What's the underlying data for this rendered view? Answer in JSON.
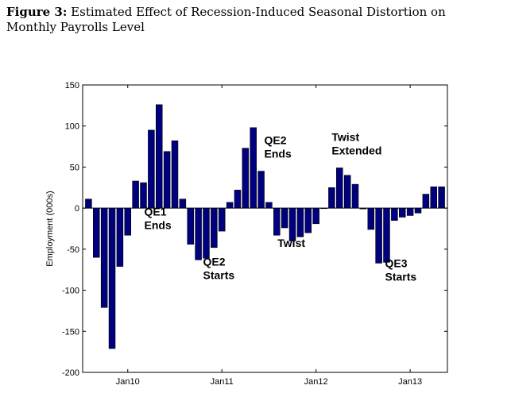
{
  "figure": {
    "number": "Figure 3:",
    "title": "Estimated Effect of Recession-Induced Seasonal Distortion on Monthly Payrolls Level"
  },
  "chart_data": {
    "type": "bar",
    "ylabel": "Employment (000s)",
    "xlabel": "",
    "ylim": [
      -200,
      150
    ],
    "yticks": [
      150,
      100,
      50,
      0,
      -50,
      -100,
      -150,
      -200
    ],
    "xtick_labels": [
      {
        "label": "Jan10",
        "index": 5
      },
      {
        "label": "Jan11",
        "index": 17
      },
      {
        "label": "Jan12",
        "index": 29
      },
      {
        "label": "Jan13",
        "index": 41
      }
    ],
    "bar_color": "#00007f",
    "values": [
      11,
      -60,
      -121,
      -171,
      -71,
      -33,
      33,
      31,
      95,
      126,
      69,
      82,
      11,
      -44,
      -63,
      -61,
      -48,
      -28,
      7,
      22,
      73,
      98,
      45,
      7,
      -33,
      -24,
      -40,
      -35,
      -30,
      -19,
      0,
      25,
      49,
      40,
      29,
      -1,
      -26,
      -67,
      -66,
      -15,
      -11,
      -9,
      -6,
      17,
      26,
      26
    ],
    "annotations": [
      {
        "lines": [
          "QE1",
          "Ends"
        ],
        "x_index": 7.1,
        "y_value": -9
      },
      {
        "lines": [
          "QE2",
          "Starts"
        ],
        "x_index": 14.6,
        "y_value": -70
      },
      {
        "lines": [
          "QE2",
          "Ends"
        ],
        "x_index": 22.4,
        "y_value": 78
      },
      {
        "lines": [
          "Twist"
        ],
        "x_index": 24.1,
        "y_value": -47
      },
      {
        "lines": [
          "Twist",
          "Extended"
        ],
        "x_index": 31.0,
        "y_value": 82
      },
      {
        "lines": [
          "QE3",
          "Starts"
        ],
        "x_index": 37.8,
        "y_value": -72
      }
    ]
  }
}
